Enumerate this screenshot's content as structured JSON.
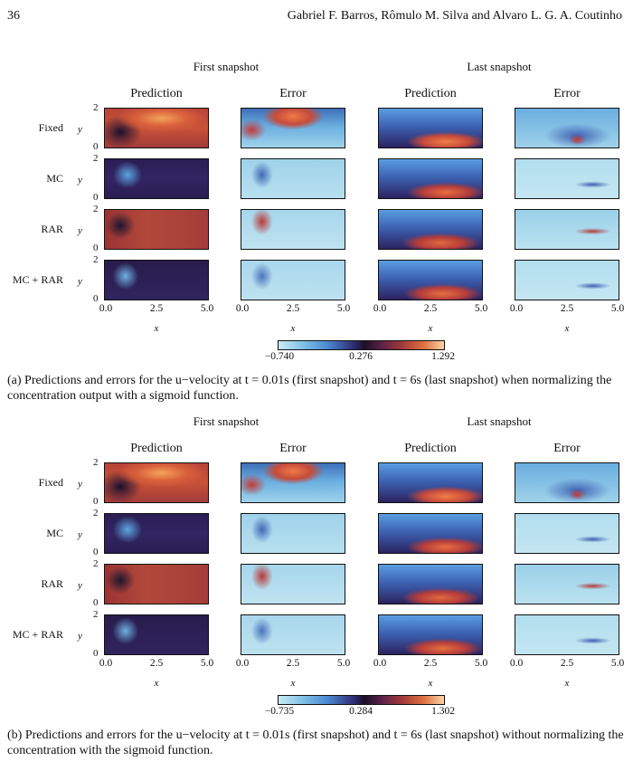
{
  "header": {
    "page_number": "36",
    "authors": "Gabriel F. Barros, Rômulo M. Silva  and Alvaro L. G. A. Coutinho"
  },
  "figures": [
    {
      "group_labels": [
        "First snapshot",
        "Last snapshot"
      ],
      "column_titles": [
        "Prediction",
        "Error",
        "Prediction",
        "Error"
      ],
      "row_labels": [
        "Fixed",
        "MC",
        "RAR",
        "MC + RAR"
      ],
      "y_axis_label": "y",
      "y_ticks": [
        "2",
        "0"
      ],
      "x_axis_label": "x",
      "x_ticks": [
        "0.0",
        "2.5",
        "5.0"
      ],
      "colorbar_ticks": [
        "−0.740",
        "0.276",
        "1.292"
      ],
      "caption": "(a) Predictions and errors for the u−velocity at t = 0.01s (first snapshot) and t = 6s (last snapshot) when normalizing the concentration output with a sigmoid function."
    },
    {
      "group_labels": [
        "First snapshot",
        "Last snapshot"
      ],
      "column_titles": [
        "Prediction",
        "Error",
        "Prediction",
        "Error"
      ],
      "row_labels": [
        "Fixed",
        "MC",
        "RAR",
        "MC + RAR"
      ],
      "y_axis_label": "y",
      "y_ticks": [
        "2",
        "0"
      ],
      "x_axis_label": "x",
      "x_ticks": [
        "0.0",
        "2.5",
        "5.0"
      ],
      "colorbar_ticks": [
        "−0.735",
        "0.284",
        "1.302"
      ],
      "caption": "(b) Predictions and errors for the u−velocity at t = 0.01s (first snapshot) and t = 6s (last snapshot) without normalizing the concentration with the sigmoid function."
    }
  ]
}
